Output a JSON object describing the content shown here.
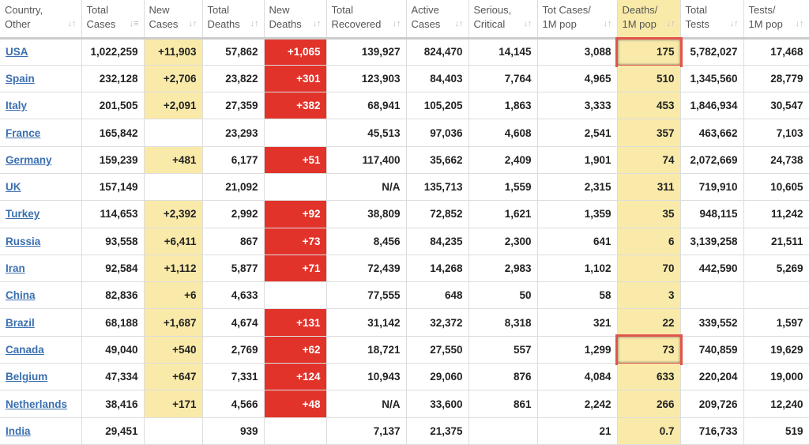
{
  "headers": [
    [
      "Country,",
      "Other"
    ],
    [
      "Total",
      "Cases"
    ],
    [
      "New",
      "Cases"
    ],
    [
      "Total",
      "Deaths"
    ],
    [
      "New",
      "Deaths"
    ],
    [
      "Total",
      "Recovered"
    ],
    [
      "Active",
      "Cases"
    ],
    [
      "Serious,",
      "Critical"
    ],
    [
      "Tot Cases/",
      "1M pop"
    ],
    [
      "Deaths/",
      "1M pop"
    ],
    [
      "Total",
      "Tests"
    ],
    [
      "Tests/",
      "1M pop"
    ]
  ],
  "rows": [
    [
      "USA",
      "1,022,259",
      "+11,903",
      "57,862",
      "+1,065",
      "139,927",
      "824,470",
      "14,145",
      "3,088",
      "175",
      "5,782,027",
      "17,468"
    ],
    [
      "Spain",
      "232,128",
      "+2,706",
      "23,822",
      "+301",
      "123,903",
      "84,403",
      "7,764",
      "4,965",
      "510",
      "1,345,560",
      "28,779"
    ],
    [
      "Italy",
      "201,505",
      "+2,091",
      "27,359",
      "+382",
      "68,941",
      "105,205",
      "1,863",
      "3,333",
      "453",
      "1,846,934",
      "30,547"
    ],
    [
      "France",
      "165,842",
      "",
      "23,293",
      "",
      "45,513",
      "97,036",
      "4,608",
      "2,541",
      "357",
      "463,662",
      "7,103"
    ],
    [
      "Germany",
      "159,239",
      "+481",
      "6,177",
      "+51",
      "117,400",
      "35,662",
      "2,409",
      "1,901",
      "74",
      "2,072,669",
      "24,738"
    ],
    [
      "UK",
      "157,149",
      "",
      "21,092",
      "",
      "N/A",
      "135,713",
      "1,559",
      "2,315",
      "311",
      "719,910",
      "10,605"
    ],
    [
      "Turkey",
      "114,653",
      "+2,392",
      "2,992",
      "+92",
      "38,809",
      "72,852",
      "1,621",
      "1,359",
      "35",
      "948,115",
      "11,242"
    ],
    [
      "Russia",
      "93,558",
      "+6,411",
      "867",
      "+73",
      "8,456",
      "84,235",
      "2,300",
      "641",
      "6",
      "3,139,258",
      "21,511"
    ],
    [
      "Iran",
      "92,584",
      "+1,112",
      "5,877",
      "+71",
      "72,439",
      "14,268",
      "2,983",
      "1,102",
      "70",
      "442,590",
      "5,269"
    ],
    [
      "China",
      "82,836",
      "+6",
      "4,633",
      "",
      "77,555",
      "648",
      "50",
      "58",
      "3",
      "",
      ""
    ],
    [
      "Brazil",
      "68,188",
      "+1,687",
      "4,674",
      "+131",
      "31,142",
      "32,372",
      "8,318",
      "321",
      "22",
      "339,552",
      "1,597"
    ],
    [
      "Canada",
      "49,040",
      "+540",
      "2,769",
      "+62",
      "18,721",
      "27,550",
      "557",
      "1,299",
      "73",
      "740,859",
      "19,629"
    ],
    [
      "Belgium",
      "47,334",
      "+647",
      "7,331",
      "+124",
      "10,943",
      "29,060",
      "876",
      "4,084",
      "633",
      "220,204",
      "19,000"
    ],
    [
      "Netherlands",
      "38,416",
      "+171",
      "4,566",
      "+48",
      "N/A",
      "33,600",
      "861",
      "2,242",
      "266",
      "209,726",
      "12,240"
    ],
    [
      "India",
      "29,451",
      "",
      "939",
      "",
      "7,137",
      "21,375",
      "",
      "21",
      "0.7",
      "716,733",
      "519"
    ]
  ],
  "highlighted_rows": [
    "USA",
    "Canada"
  ],
  "colors": {
    "new_cases": "#f9eaa9",
    "new_deaths": "#e2332b",
    "highlight_box": "#e0554b",
    "link": "#3a6fb0"
  }
}
